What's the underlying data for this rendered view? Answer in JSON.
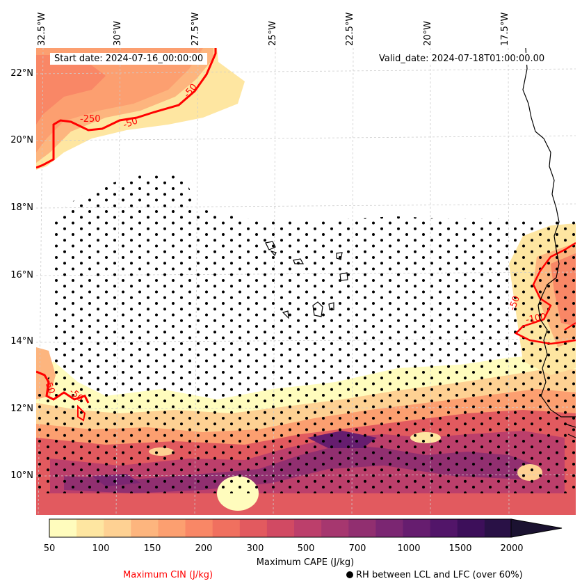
{
  "map": {
    "lon_labels": [
      "32.5°W",
      "30°W",
      "27.5°W",
      "25°W",
      "22.5°W",
      "20°W",
      "17.5°W"
    ],
    "lat_labels": [
      "22°N",
      "20°N",
      "18°N",
      "16°N",
      "14°N",
      "12°N",
      "10°N"
    ],
    "start_date": "Start date: 2024-07-16_00:00:00",
    "valid_date": "Valid_date: 2024-07-18T01:00:00.00",
    "cin_contour_labels": [
      "-250",
      "-50",
      "-50",
      "-50",
      "-50",
      "-100",
      "-50"
    ],
    "colors": {
      "cin_contour": "#ff0000",
      "coastline": "#000000",
      "grid": "#cccccc"
    }
  },
  "colorbar": {
    "tick_labels": [
      "50",
      "100",
      "150",
      "200",
      "300",
      "500",
      "700",
      "1000",
      "1500",
      "2000"
    ],
    "title": "Maximum CAPE (J/kg)",
    "colors": [
      "#fffcbd",
      "#fee6a1",
      "#fed193",
      "#fdb57e",
      "#fc9f70",
      "#f98766",
      "#f0705f",
      "#e25a5f",
      "#d14a63",
      "#bc3f6b",
      "#a6376f",
      "#912f70",
      "#7b2672",
      "#661d6f",
      "#521569",
      "#3d0f5a",
      "#291146",
      "#1b1231"
    ],
    "extend": "max"
  },
  "legend": {
    "cin_label": "Maximum CIN (J/kg)",
    "rh_label": "RH between LCL and LFC (over 60%)"
  }
}
